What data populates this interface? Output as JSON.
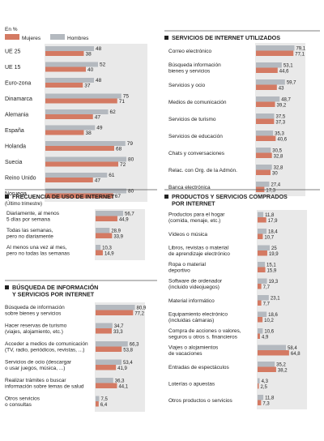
{
  "colors": {
    "mujeres": "#d47a63",
    "hombres": "#b4b9bf",
    "panel": "#e9e9e9",
    "rule": "#555555",
    "text": "#222222"
  },
  "legend": {
    "unit": "En %",
    "mujeres": "Mujeres",
    "hombres": "Hombres"
  },
  "chart_data": [
    {
      "type": "bar",
      "title": "",
      "series_order": [
        "hombres",
        "mujeres"
      ],
      "categories": [
        "UE 25",
        "UE 15",
        "Euro-zona",
        "Dinamarca",
        "Alemania",
        "España",
        "Holanda",
        "Suecia",
        "Reino Unido",
        "Noruega"
      ],
      "hombres": [
        48,
        52,
        48,
        75,
        62,
        49,
        79,
        80,
        61,
        80
      ],
      "mujeres": [
        38,
        40,
        37,
        71,
        47,
        38,
        68,
        72,
        47,
        67
      ],
      "hombres_labels": [
        "48",
        "52",
        "48",
        "75",
        "62",
        "49",
        "79",
        "80",
        "61",
        "80"
      ],
      "mujeres_labels": [
        "38",
        "40",
        "37",
        "71",
        "47",
        "38",
        "68",
        "72",
        "47",
        "67"
      ],
      "xlim": [
        0,
        100
      ]
    },
    {
      "type": "bar",
      "title": "SERVICIOS DE INTERNET UTILIZADOS",
      "categories": [
        "Correo electrónico",
        "Búsqueda información\nbienes y servicios",
        "Servicios y ocio",
        "Medios de comunicación",
        "Servicios de turismo",
        "Servicios de educación",
        "Chats y conversaciones",
        "Relac. con Org. de la Admón.",
        "Banca electrónica"
      ],
      "hombres": [
        79.1,
        53.1,
        59.7,
        48.7,
        37.5,
        35.3,
        30.5,
        32.8,
        27.4
      ],
      "mujeres": [
        77.1,
        44.6,
        43,
        39.2,
        37.3,
        40.6,
        32.8,
        30,
        17.3
      ],
      "hombres_labels": [
        "79,1",
        "53,1",
        "59,7",
        "48,7",
        "37,5",
        "35,3",
        "30,5",
        "32,8",
        "27,4"
      ],
      "mujeres_labels": [
        "77,1",
        "44,6",
        "43",
        "39,2",
        "37,3",
        "40,6",
        "32,8",
        "30",
        "17,3"
      ],
      "xlim": [
        0,
        100
      ]
    },
    {
      "type": "bar",
      "title": "FRECUENCIA DE USO DE INTERNET",
      "subtitle": "(Último trimestre)",
      "categories": [
        "Diariamente, al menos\n5 días por semana",
        "Todas las semanas,\npero no diariamente",
        "Al menos una vez al mes,\npero no todas las semanas"
      ],
      "hombres": [
        56.7,
        28.9,
        10.3
      ],
      "mujeres": [
        44.9,
        33.9,
        14.9
      ],
      "hombres_labels": [
        "56,7",
        "28,9",
        "10,3"
      ],
      "mujeres_labels": [
        "44,9",
        "33,9",
        "14,9"
      ],
      "xlim": [
        0,
        100
      ]
    },
    {
      "type": "bar",
      "title": "BÚSQUEDA DE INFORMACIÓN\nY SERVICIOS POR INTERNET",
      "categories": [
        "Búsqueda de información\nsobre bienes y servicios",
        "Hacer reservas de turismo\n(viajes, alojamiento, etc.)",
        "Acceder a medios de comunicación\n(TV, radio, periódicos, revistas, ...)",
        "Servicios de ocio (descargar\no usar juegos, música, ...)",
        "Realizar trámites o buscar\ninformación sobre temas de salud",
        "Otros servicios\no consultas"
      ],
      "hombres": [
        80.9,
        34.7,
        66.3,
        53.4,
        36.3,
        7.5
      ],
      "mujeres": [
        77.2,
        33.3,
        53.8,
        41.9,
        44.1,
        6.4
      ],
      "hombres_labels": [
        "80,9",
        "34,7",
        "66,3",
        "53,4",
        "36,3",
        "7,5"
      ],
      "mujeres_labels": [
        "77,2",
        "33,3",
        "53,8",
        "41,9",
        "44,1",
        "6,4"
      ],
      "xlim": [
        0,
        100
      ]
    },
    {
      "type": "bar",
      "title": "PRODUCTOS Y SERVICIOS COMPRADOS\nPOR INTERNET",
      "categories": [
        "Productos para el hogar\n(comida, menaje, etc.)",
        "Vídeos o música",
        "Libros, revistas o material\nde aprendizaje electrónico",
        "Ropa o material\ndeportivo",
        "Software de ordenador\n(incluido videojuegos)",
        "Material informático",
        "Equipamiento electrónico\n(incluidas cámaras)",
        "Compra de acciones o valores,\nseguros u otros s. financieros",
        "Viajes o alojamientos\nde vacaciones",
        "Entradas de espectáculos",
        "Loterías o apuestas",
        "Otros productos o servicios"
      ],
      "hombres": [
        11.8,
        18.4,
        25,
        15.1,
        19.3,
        23.1,
        18.6,
        10.6,
        58.4,
        35.2,
        4.3,
        11.8
      ],
      "mujeres": [
        17.9,
        10.7,
        19.9,
        15.9,
        7.7,
        7.7,
        10.2,
        4.9,
        64.8,
        38.2,
        2.5,
        7.3
      ],
      "hombres_labels": [
        "11,8",
        "18,4",
        "25",
        "15,1",
        "19,3",
        "23,1",
        "18,6",
        "10,6",
        "58,4",
        "35,2",
        "4,3",
        "11,8"
      ],
      "mujeres_labels": [
        "17,9",
        "10,7",
        "19,9",
        "15,9",
        "7,7",
        "7,7",
        "10,2",
        "4,9",
        "64,8",
        "38,2",
        "2,5",
        "7,3"
      ],
      "xlim": [
        0,
        100
      ]
    }
  ]
}
